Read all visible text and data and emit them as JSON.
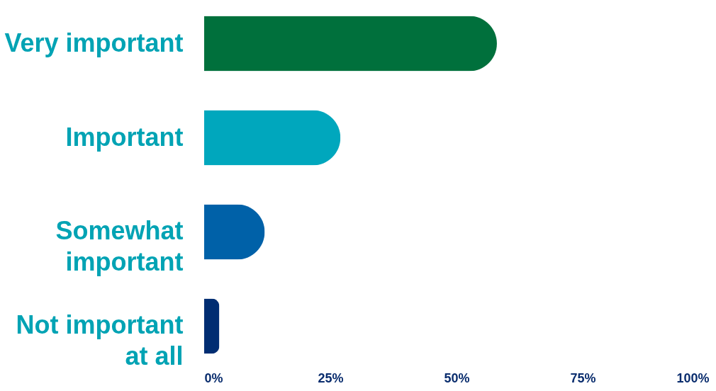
{
  "chart_data": {
    "type": "bar",
    "orientation": "horizontal",
    "categories": [
      "Very important",
      "Important",
      "Somewhat important",
      "Not important at all"
    ],
    "values": [
      58,
      27,
      12,
      3
    ],
    "colors": [
      "#00703c",
      "#00a7bd",
      "#0061a8",
      "#002d72"
    ],
    "xlim": [
      0,
      100
    ],
    "xticks": [
      {
        "value": 0,
        "label": "0%"
      },
      {
        "value": 25,
        "label": "25%"
      },
      {
        "value": 50,
        "label": "50%"
      },
      {
        "value": 75,
        "label": "75%"
      },
      {
        "value": 100,
        "label": "100%"
      }
    ],
    "grid": false
  }
}
